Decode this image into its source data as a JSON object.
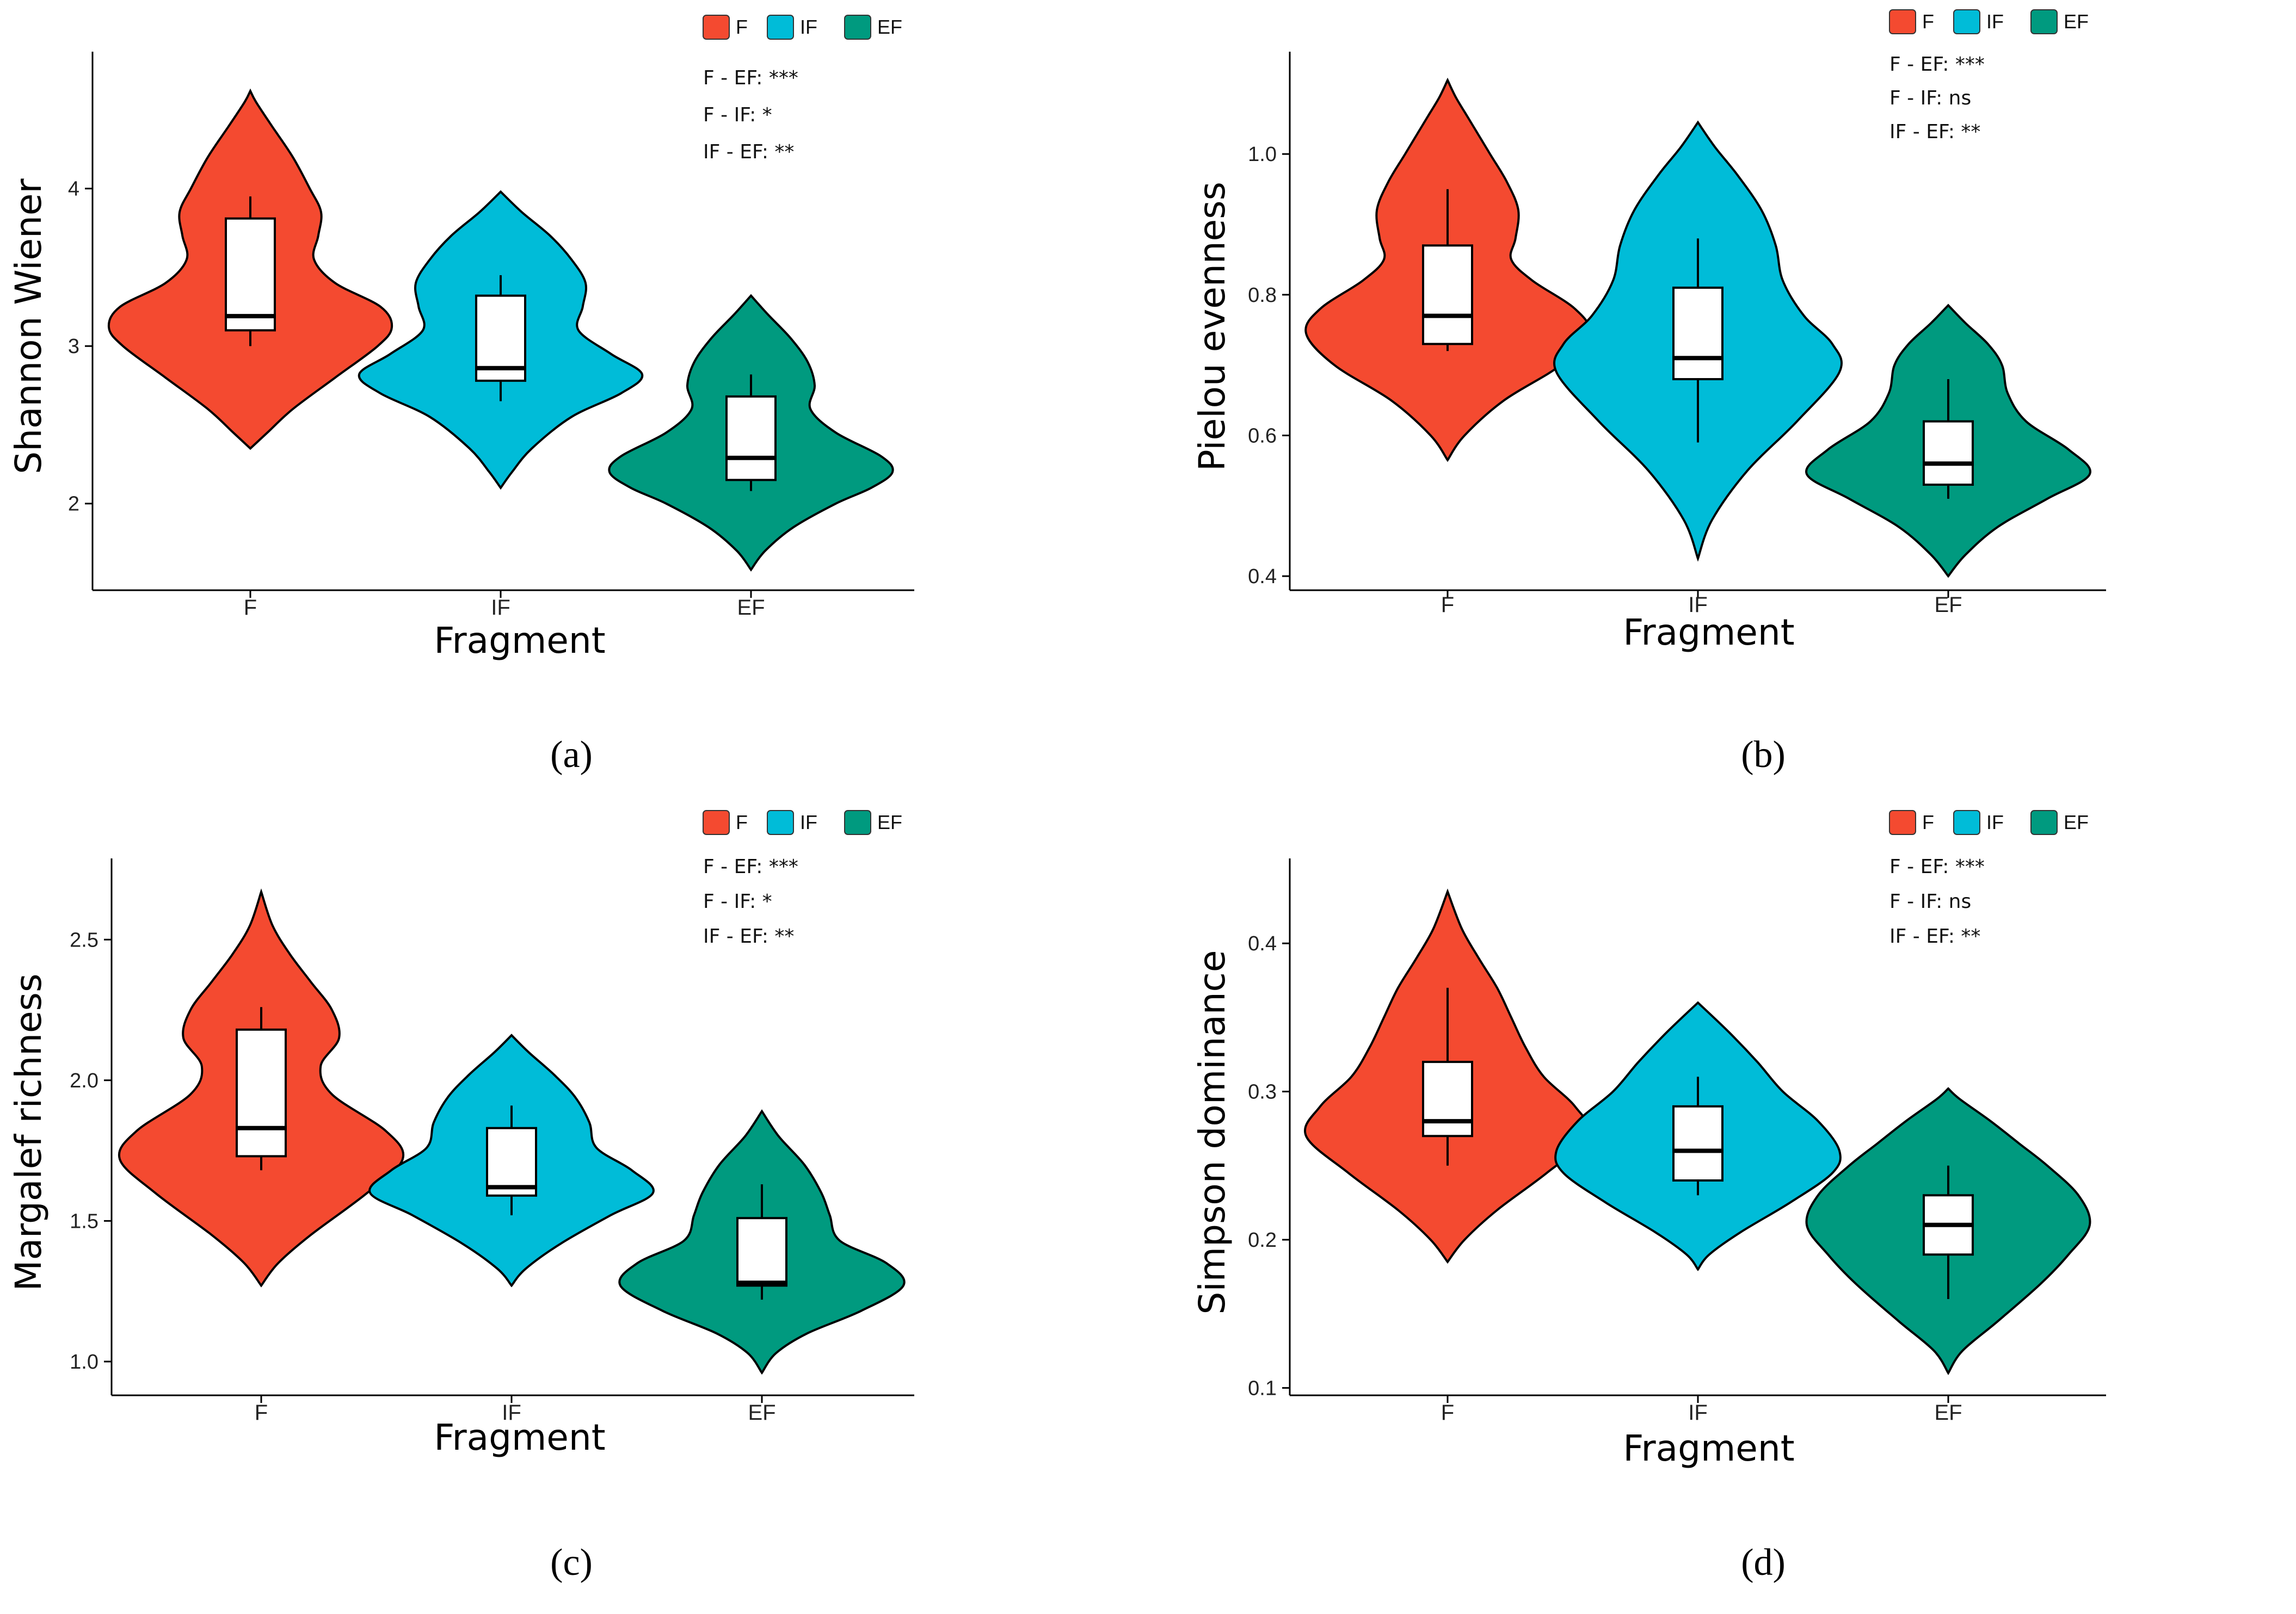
{
  "colors": {
    "F": "#F44A30",
    "IF": "#00BCD8",
    "EF": "#009A7F",
    "axis": "#000000",
    "box_fill": "#ffffff"
  },
  "chart_data": [
    {
      "type": "violin",
      "panel_label": "(a)",
      "ylabel": "Shannon Wiener",
      "xlabel": "Fragment",
      "ylim": [
        1.45,
        4.8
      ],
      "yticks": [
        2,
        3,
        4
      ],
      "ytick_labels": [
        "2",
        "3",
        "4"
      ],
      "categories": [
        "F",
        "IF",
        "EF"
      ],
      "legend": [
        "F",
        "IF",
        "EF"
      ],
      "significance": [
        "F - EF: ***",
        "F - IF: *",
        "IF - EF: **"
      ],
      "groups": [
        {
          "name": "F",
          "min": 2.35,
          "max": 4.62,
          "whisker_low": 3.0,
          "whisker_high": 3.95,
          "q1": 3.1,
          "median": 3.19,
          "q3": 3.81,
          "density": [
            [
              2.35,
              0.0
            ],
            [
              2.45,
              0.12
            ],
            [
              2.6,
              0.3
            ],
            [
              2.8,
              0.6
            ],
            [
              3.0,
              0.9
            ],
            [
              3.12,
              1.0
            ],
            [
              3.25,
              0.92
            ],
            [
              3.4,
              0.6
            ],
            [
              3.55,
              0.45
            ],
            [
              3.7,
              0.48
            ],
            [
              3.85,
              0.5
            ],
            [
              4.0,
              0.42
            ],
            [
              4.2,
              0.3
            ],
            [
              4.4,
              0.15
            ],
            [
              4.55,
              0.04
            ],
            [
              4.62,
              0.0
            ]
          ]
        },
        {
          "name": "IF",
          "min": 2.1,
          "max": 3.98,
          "whisker_low": 2.65,
          "whisker_high": 3.45,
          "q1": 2.78,
          "median": 2.86,
          "q3": 3.32,
          "density": [
            [
              2.1,
              0.0
            ],
            [
              2.2,
              0.08
            ],
            [
              2.35,
              0.22
            ],
            [
              2.55,
              0.5
            ],
            [
              2.7,
              0.85
            ],
            [
              2.82,
              1.0
            ],
            [
              2.95,
              0.78
            ],
            [
              3.1,
              0.55
            ],
            [
              3.25,
              0.58
            ],
            [
              3.4,
              0.6
            ],
            [
              3.55,
              0.5
            ],
            [
              3.7,
              0.35
            ],
            [
              3.85,
              0.15
            ],
            [
              3.98,
              0.0
            ]
          ]
        },
        {
          "name": "EF",
          "min": 1.58,
          "max": 3.32,
          "whisker_low": 2.08,
          "whisker_high": 2.82,
          "q1": 2.15,
          "median": 2.29,
          "q3": 2.68,
          "density": [
            [
              1.58,
              0.0
            ],
            [
              1.7,
              0.1
            ],
            [
              1.85,
              0.3
            ],
            [
              2.0,
              0.6
            ],
            [
              2.1,
              0.85
            ],
            [
              2.2,
              1.0
            ],
            [
              2.3,
              0.92
            ],
            [
              2.45,
              0.6
            ],
            [
              2.6,
              0.42
            ],
            [
              2.75,
              0.45
            ],
            [
              2.9,
              0.4
            ],
            [
              3.05,
              0.28
            ],
            [
              3.2,
              0.12
            ],
            [
              3.32,
              0.0
            ]
          ]
        }
      ]
    },
    {
      "type": "violin",
      "panel_label": "(b)",
      "ylabel": "Pielou evenness",
      "xlabel": "Fragment",
      "ylim": [
        0.38,
        1.13
      ],
      "yticks": [
        0.4,
        0.6,
        0.8,
        1.0
      ],
      "ytick_labels": [
        "0.4",
        "0.6",
        "0.8",
        "1.0"
      ],
      "categories": [
        "F",
        "IF",
        "EF"
      ],
      "legend": [
        "F",
        "IF",
        "EF"
      ],
      "significance": [
        "F - EF: ***",
        "F - IF: ns",
        "IF - EF: **"
      ],
      "groups": [
        {
          "name": "F",
          "min": 0.565,
          "max": 1.105,
          "whisker_low": 0.72,
          "whisker_high": 0.95,
          "q1": 0.73,
          "median": 0.77,
          "q3": 0.87,
          "density": [
            [
              0.565,
              0.0
            ],
            [
              0.6,
              0.12
            ],
            [
              0.65,
              0.4
            ],
            [
              0.7,
              0.8
            ],
            [
              0.745,
              1.0
            ],
            [
              0.78,
              0.9
            ],
            [
              0.82,
              0.6
            ],
            [
              0.85,
              0.45
            ],
            [
              0.88,
              0.48
            ],
            [
              0.92,
              0.5
            ],
            [
              0.96,
              0.42
            ],
            [
              1.0,
              0.3
            ],
            [
              1.05,
              0.15
            ],
            [
              1.08,
              0.06
            ],
            [
              1.105,
              0.0
            ]
          ]
        },
        {
          "name": "IF",
          "min": 0.425,
          "max": 1.045,
          "whisker_low": 0.59,
          "whisker_high": 0.88,
          "q1": 0.68,
          "median": 0.71,
          "q3": 0.81,
          "density": [
            [
              0.425,
              0.0
            ],
            [
              0.48,
              0.1
            ],
            [
              0.55,
              0.35
            ],
            [
              0.62,
              0.7
            ],
            [
              0.69,
              1.0
            ],
            [
              0.73,
              0.95
            ],
            [
              0.77,
              0.75
            ],
            [
              0.82,
              0.6
            ],
            [
              0.87,
              0.55
            ],
            [
              0.92,
              0.45
            ],
            [
              0.97,
              0.28
            ],
            [
              1.01,
              0.12
            ],
            [
              1.045,
              0.0
            ]
          ]
        },
        {
          "name": "EF",
          "min": 0.4,
          "max": 0.785,
          "whisker_low": 0.51,
          "whisker_high": 0.68,
          "q1": 0.53,
          "median": 0.56,
          "q3": 0.62,
          "density": [
            [
              0.4,
              0.0
            ],
            [
              0.43,
              0.12
            ],
            [
              0.47,
              0.35
            ],
            [
              0.51,
              0.7
            ],
            [
              0.545,
              1.0
            ],
            [
              0.58,
              0.85
            ],
            [
              0.62,
              0.55
            ],
            [
              0.66,
              0.42
            ],
            [
              0.7,
              0.38
            ],
            [
              0.73,
              0.28
            ],
            [
              0.76,
              0.12
            ],
            [
              0.785,
              0.0
            ]
          ]
        }
      ]
    },
    {
      "type": "violin",
      "panel_label": "(c)",
      "ylabel": "Margalef richness",
      "xlabel": "Fragment",
      "ylim": [
        0.88,
        2.75
      ],
      "yticks": [
        1.0,
        1.5,
        2.0,
        2.5
      ],
      "ytick_labels": [
        "1.0",
        "1.5",
        "2.0",
        "2.5"
      ],
      "categories": [
        "F",
        "IF",
        "EF"
      ],
      "legend": [
        "F",
        "IF",
        "EF"
      ],
      "significance": [
        "F - EF: ***",
        "F - IF: *",
        "IF - EF: **"
      ],
      "groups": [
        {
          "name": "F",
          "min": 1.27,
          "max": 2.67,
          "whisker_low": 1.68,
          "whisker_high": 2.26,
          "q1": 1.73,
          "median": 1.83,
          "q3": 2.18,
          "density": [
            [
              1.27,
              0.0
            ],
            [
              1.35,
              0.12
            ],
            [
              1.45,
              0.35
            ],
            [
              1.6,
              0.75
            ],
            [
              1.72,
              1.0
            ],
            [
              1.82,
              0.88
            ],
            [
              1.95,
              0.5
            ],
            [
              2.05,
              0.42
            ],
            [
              2.15,
              0.55
            ],
            [
              2.25,
              0.5
            ],
            [
              2.35,
              0.35
            ],
            [
              2.45,
              0.2
            ],
            [
              2.55,
              0.08
            ],
            [
              2.67,
              0.0
            ]
          ]
        },
        {
          "name": "IF",
          "min": 1.27,
          "max": 2.16,
          "whisker_low": 1.52,
          "whisker_high": 1.91,
          "q1": 1.59,
          "median": 1.62,
          "q3": 1.83,
          "density": [
            [
              1.27,
              0.0
            ],
            [
              1.33,
              0.1
            ],
            [
              1.42,
              0.35
            ],
            [
              1.52,
              0.7
            ],
            [
              1.6,
              1.0
            ],
            [
              1.68,
              0.85
            ],
            [
              1.76,
              0.6
            ],
            [
              1.85,
              0.55
            ],
            [
              1.94,
              0.45
            ],
            [
              2.02,
              0.3
            ],
            [
              2.1,
              0.12
            ],
            [
              2.16,
              0.0
            ]
          ]
        },
        {
          "name": "EF",
          "min": 0.96,
          "max": 1.89,
          "whisker_low": 1.22,
          "whisker_high": 1.63,
          "q1": 1.27,
          "median": 1.28,
          "q3": 1.51,
          "density": [
            [
              0.96,
              0.0
            ],
            [
              1.03,
              0.1
            ],
            [
              1.1,
              0.32
            ],
            [
              1.18,
              0.7
            ],
            [
              1.27,
              1.0
            ],
            [
              1.35,
              0.88
            ],
            [
              1.43,
              0.55
            ],
            [
              1.52,
              0.48
            ],
            [
              1.6,
              0.42
            ],
            [
              1.7,
              0.3
            ],
            [
              1.8,
              0.12
            ],
            [
              1.89,
              0.0
            ]
          ]
        }
      ]
    },
    {
      "type": "violin",
      "panel_label": "(d)",
      "ylabel": "Simpson dominance",
      "xlabel": "Fragment",
      "ylim": [
        0.095,
        0.45
      ],
      "yticks": [
        0.1,
        0.2,
        0.3,
        0.4
      ],
      "ytick_labels": [
        "0.1",
        "0.2",
        "0.3",
        "0.4"
      ],
      "categories": [
        "F",
        "IF",
        "EF"
      ],
      "legend": [
        "F",
        "IF",
        "EF"
      ],
      "significance": [
        "F - EF: ***",
        "F - IF: ns",
        "IF - EF: **"
      ],
      "groups": [
        {
          "name": "F",
          "min": 0.185,
          "max": 0.435,
          "whisker_low": 0.25,
          "whisker_high": 0.37,
          "q1": 0.27,
          "median": 0.28,
          "q3": 0.32,
          "density": [
            [
              0.185,
              0.0
            ],
            [
              0.2,
              0.12
            ],
            [
              0.22,
              0.35
            ],
            [
              0.245,
              0.7
            ],
            [
              0.27,
              1.0
            ],
            [
              0.29,
              0.9
            ],
            [
              0.31,
              0.68
            ],
            [
              0.33,
              0.55
            ],
            [
              0.35,
              0.45
            ],
            [
              0.37,
              0.35
            ],
            [
              0.39,
              0.22
            ],
            [
              0.41,
              0.1
            ],
            [
              0.435,
              0.0
            ]
          ]
        },
        {
          "name": "IF",
          "min": 0.18,
          "max": 0.36,
          "whisker_low": 0.23,
          "whisker_high": 0.31,
          "q1": 0.24,
          "median": 0.26,
          "q3": 0.29,
          "density": [
            [
              0.18,
              0.0
            ],
            [
              0.19,
              0.08
            ],
            [
              0.205,
              0.3
            ],
            [
              0.225,
              0.65
            ],
            [
              0.245,
              0.95
            ],
            [
              0.26,
              1.0
            ],
            [
              0.28,
              0.85
            ],
            [
              0.3,
              0.6
            ],
            [
              0.32,
              0.42
            ],
            [
              0.34,
              0.22
            ],
            [
              0.36,
              0.0
            ]
          ]
        },
        {
          "name": "EF",
          "min": 0.11,
          "max": 0.302,
          "whisker_low": 0.16,
          "whisker_high": 0.25,
          "q1": 0.19,
          "median": 0.21,
          "q3": 0.23,
          "density": [
            [
              0.11,
              0.0
            ],
            [
              0.125,
              0.1
            ],
            [
              0.145,
              0.35
            ],
            [
              0.17,
              0.65
            ],
            [
              0.19,
              0.85
            ],
            [
              0.21,
              1.0
            ],
            [
              0.23,
              0.92
            ],
            [
              0.25,
              0.7
            ],
            [
              0.265,
              0.5
            ],
            [
              0.28,
              0.3
            ],
            [
              0.295,
              0.08
            ],
            [
              0.302,
              0.0
            ]
          ]
        }
      ]
    }
  ]
}
